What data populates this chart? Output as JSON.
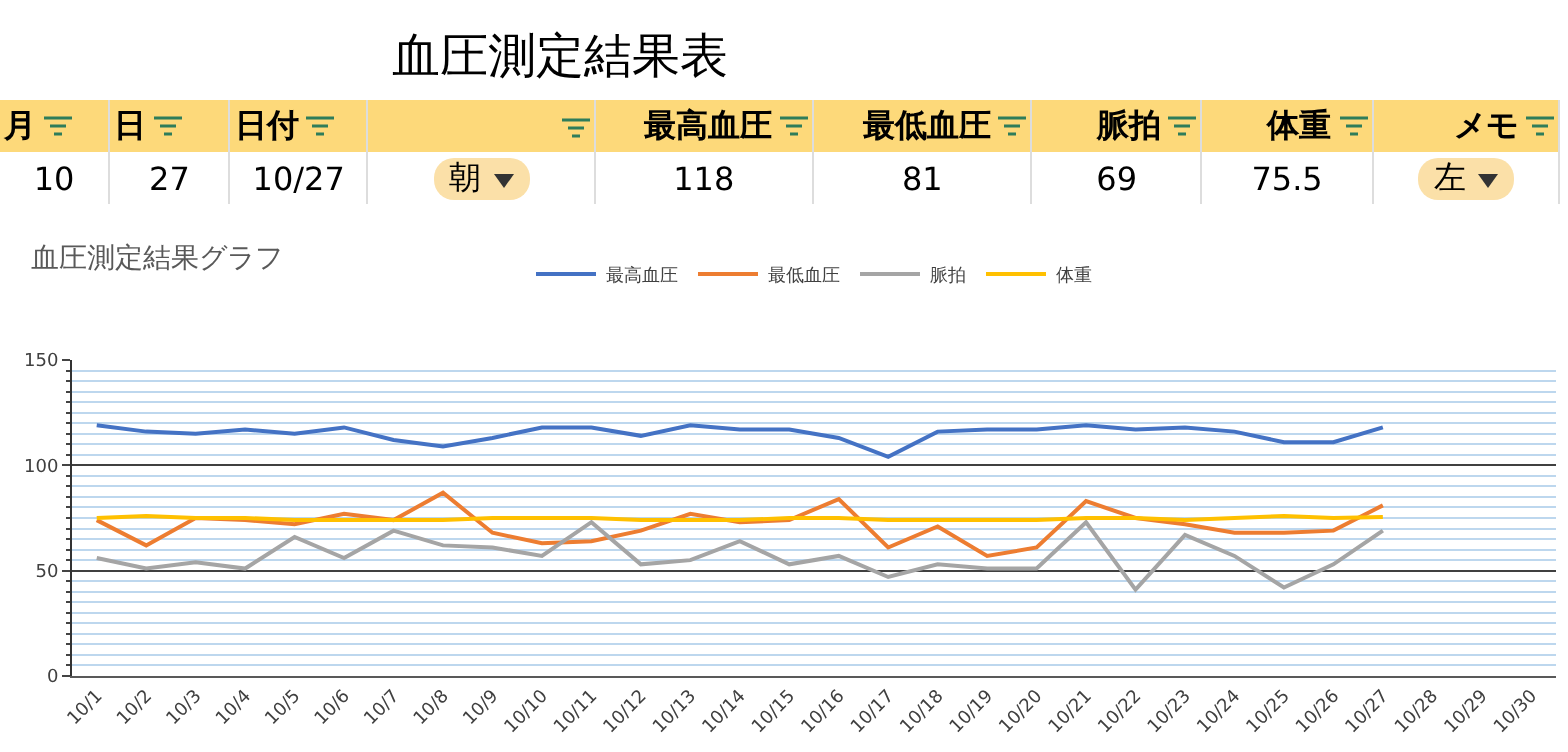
{
  "chart_data": [
    {
      "type": "other",
      "title": "血圧測定結果表",
      "annotations": [
        "月",
        "日",
        "日付",
        "最高血圧",
        "最低血圧",
        "脈拍",
        "体重",
        "メモ",
        "10",
        "27",
        "10/27",
        "朝",
        "118",
        "81",
        "69",
        "75.5",
        "左"
      ]
    },
    {
      "type": "line",
      "title": "血圧測定結果グラフ",
      "categories": [
        "10/1",
        "10/2",
        "10/3",
        "10/4",
        "10/5",
        "10/6",
        "10/7",
        "10/8",
        "10/9",
        "10/10",
        "10/11",
        "10/12",
        "10/13",
        "10/14",
        "10/15",
        "10/16",
        "10/17",
        "10/18",
        "10/19",
        "10/20",
        "10/21",
        "10/22",
        "10/23",
        "10/24",
        "10/25",
        "10/26",
        "10/27",
        "10/28",
        "10/29",
        "10/30"
      ],
      "series": [
        {
          "name": "最高血圧",
          "color": "#4472c4",
          "values": [
            119,
            116,
            115,
            117,
            115,
            118,
            112,
            109,
            113,
            118,
            118,
            114,
            119,
            117,
            117,
            113,
            104,
            116,
            117,
            117,
            119,
            117,
            118,
            116,
            111,
            111,
            118,
            null,
            null,
            null
          ]
        },
        {
          "name": "最低血圧",
          "color": "#ed7d31",
          "values": [
            74,
            62,
            75,
            74,
            72,
            77,
            74,
            87,
            68,
            63,
            64,
            69,
            77,
            73,
            74,
            84,
            61,
            71,
            57,
            61,
            83,
            75,
            72,
            68,
            68,
            69,
            81,
            null,
            null,
            null
          ]
        },
        {
          "name": "脈拍",
          "color": "#a5a5a5",
          "values": [
            56,
            51,
            54,
            51,
            66,
            56,
            69,
            62,
            61,
            57,
            73,
            53,
            55,
            64,
            53,
            57,
            47,
            53,
            51,
            51,
            73,
            41,
            67,
            57,
            42,
            53,
            69,
            null,
            null,
            null
          ]
        },
        {
          "name": "体重",
          "color": "#ffc000",
          "values": [
            75,
            76,
            75,
            75,
            74,
            74,
            74,
            74,
            75,
            75,
            75,
            74,
            74,
            74,
            75,
            75,
            74,
            74,
            74,
            74,
            75,
            75,
            74,
            75,
            76,
            75,
            75.5,
            null,
            null,
            null
          ]
        }
      ],
      "ylim": [
        0,
        150
      ],
      "yticks": [
        0,
        {
          "value": 5,
          "label": null
        },
        {
          "value": 10,
          "label": null
        },
        {
          "value": 15,
          "label": null
        },
        {
          "value": 20,
          "label": null
        },
        {
          "value": 25,
          "label": null
        },
        {
          "value": 30,
          "label": null
        },
        {
          "value": 35,
          "label": null
        },
        {
          "value": 40,
          "label": null
        },
        {
          "value": 45,
          "label": null
        },
        50,
        {
          "value": 55,
          "label": null
        },
        {
          "value": 60,
          "label": null
        },
        {
          "value": 65,
          "label": null
        },
        {
          "value": 70,
          "label": null
        },
        {
          "value": 75,
          "label": null
        },
        {
          "value": 80,
          "label": null
        },
        {
          "value": 85,
          "label": null
        },
        {
          "value": 90,
          "label": null
        },
        {
          "value": 95,
          "label": null
        },
        100,
        {
          "value": 105,
          "label": null
        },
        {
          "value": 110,
          "label": null
        },
        {
          "value": 115,
          "label": null
        },
        {
          "value": 120,
          "label": null
        },
        {
          "value": 125,
          "label": null
        },
        {
          "value": 130,
          "label": null
        },
        {
          "value": 135,
          "label": null
        },
        {
          "value": 140,
          "label": null
        },
        {
          "value": 145,
          "label": null
        },
        150
      ],
      "grid": true,
      "legend": "top",
      "marker": "none",
      "line_style": "solid"
    }
  ]
}
